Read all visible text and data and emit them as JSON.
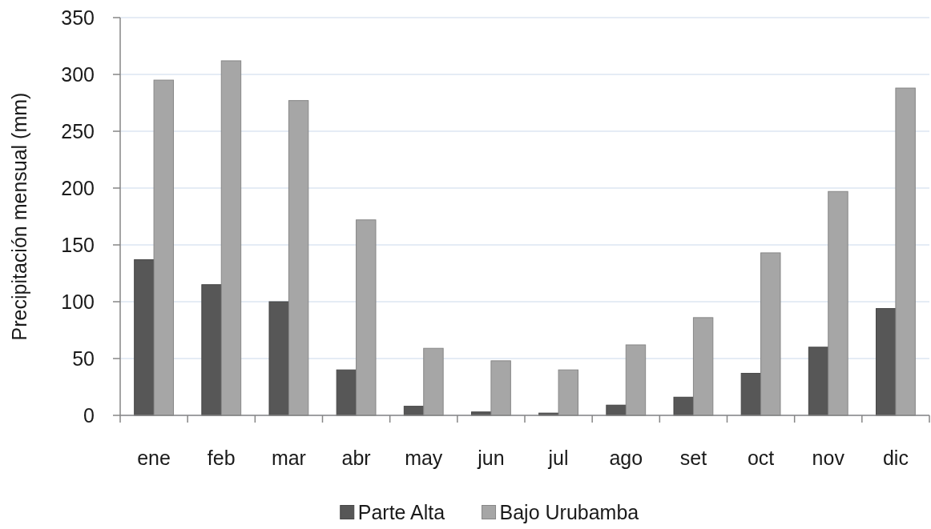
{
  "chart_data": {
    "type": "bar",
    "ylabel": "Precipitación mensual (mm)",
    "categories": [
      "ene",
      "feb",
      "mar",
      "abr",
      "may",
      "jun",
      "jul",
      "ago",
      "set",
      "oct",
      "nov",
      "dic"
    ],
    "series": [
      {
        "name": "Parte Alta",
        "color": "#575757",
        "values": [
          137,
          115,
          100,
          40,
          8,
          3,
          2,
          9,
          16,
          37,
          60,
          94
        ]
      },
      {
        "name": "Bajo Urubamba",
        "color": "#a6a6a6",
        "values": [
          295,
          312,
          277,
          172,
          59,
          48,
          40,
          62,
          86,
          143,
          197,
          288
        ]
      }
    ],
    "ylim": [
      0,
      350
    ],
    "yticks": [
      0,
      50,
      100,
      150,
      200,
      250,
      300,
      350
    ],
    "grid": "y",
    "legend": "bottom"
  }
}
